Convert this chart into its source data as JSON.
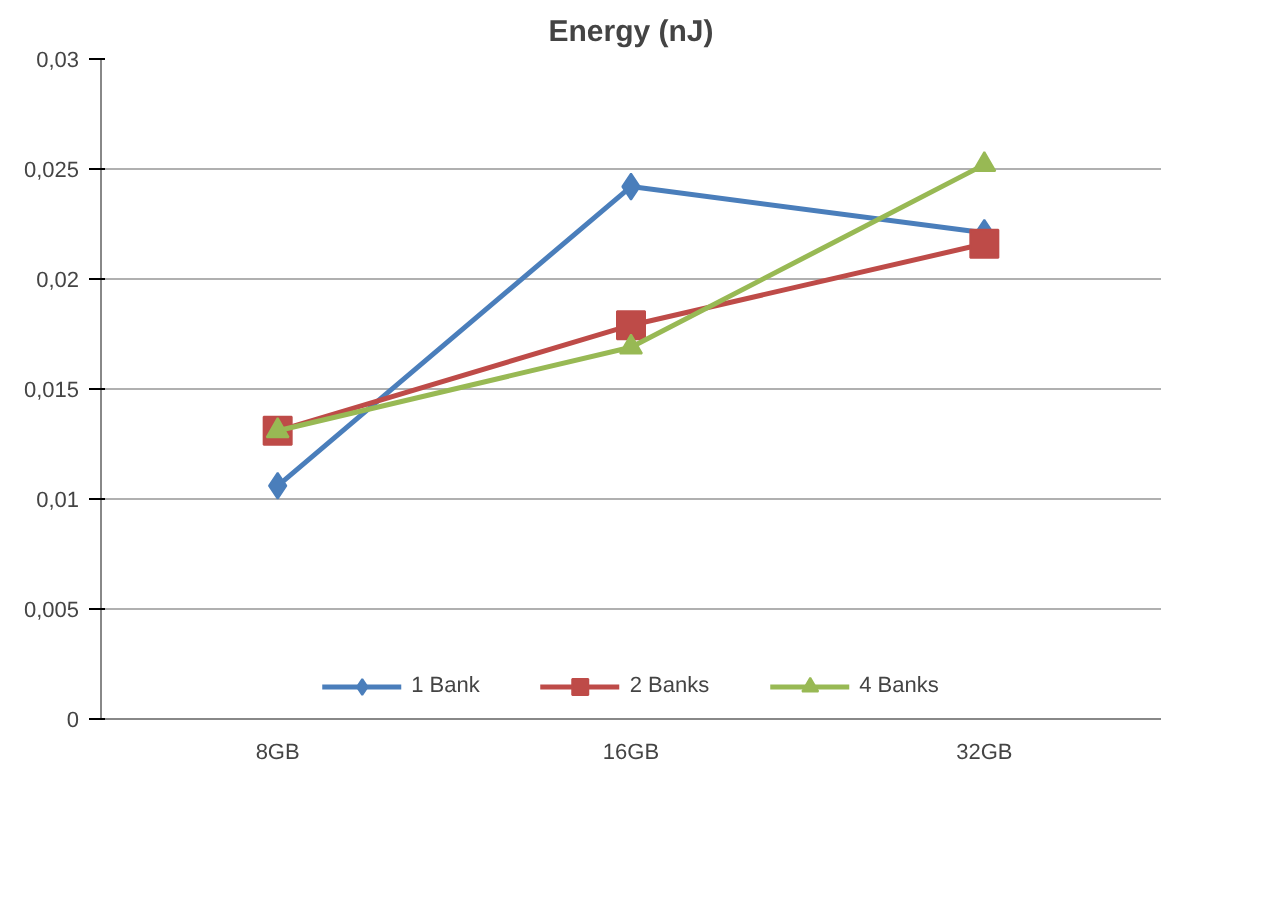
{
  "chart_data": {
    "type": "line",
    "title": "Energy (nJ)",
    "categories": [
      "8GB",
      "16GB",
      "32GB"
    ],
    "series": [
      {
        "name": "1 Bank",
        "color": "#4a7ebb",
        "marker": "diamond",
        "values": [
          0.0106,
          0.0242,
          0.0221
        ]
      },
      {
        "name": "2 Banks",
        "color": "#be4b48",
        "marker": "square",
        "values": [
          0.0131,
          0.0179,
          0.0216
        ]
      },
      {
        "name": "4 Banks",
        "color": "#98b954",
        "marker": "triangle",
        "values": [
          0.0131,
          0.0169,
          0.0252
        ]
      }
    ],
    "ylim": [
      0,
      0.03
    ],
    "yticks": [
      {
        "value": 0,
        "label": "0"
      },
      {
        "value": 0.005,
        "label": "0,005"
      },
      {
        "value": 0.01,
        "label": "0,01"
      },
      {
        "value": 0.015,
        "label": "0,015"
      },
      {
        "value": 0.02,
        "label": "0,02"
      },
      {
        "value": 0.025,
        "label": "0,025"
      },
      {
        "value": 0.03,
        "label": "0,03"
      }
    ],
    "grid": "y",
    "legend": "bottom",
    "line_style": "solid"
  }
}
